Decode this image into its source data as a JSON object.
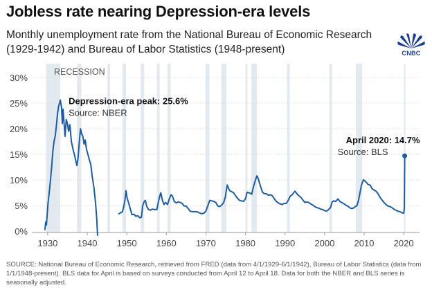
{
  "header": {
    "title": "Jobless rate nearing Depression-era levels",
    "subtitle": "Monthly unemployment rate from the National Bureau of Economic Research (1929-1942) and Bureau of Labor Statistics (1948-present)",
    "logo_text": "CNBC"
  },
  "colors": {
    "line": "#1d5c9e",
    "recession": "#e3eaef",
    "grid": "#d8d8d8",
    "text": "#222222",
    "logo": "#1b3d8f"
  },
  "chart_data": {
    "type": "line",
    "recession_label": "RECESSION",
    "ylim": [
      0,
      30
    ],
    "xlim": [
      1926,
      2024
    ],
    "y_ticks": [
      0,
      5,
      10,
      15,
      20,
      25,
      30
    ],
    "y_tick_labels": [
      "0%",
      "5%",
      "10%",
      "15%",
      "20%",
      "25%",
      "30%"
    ],
    "x_ticks": [
      1930,
      1940,
      1950,
      1960,
      1970,
      1980,
      1990,
      2000,
      2010,
      2020
    ],
    "x_tick_labels": [
      "1930",
      "1940",
      "1950",
      "1960",
      "1970",
      "1980",
      "1990",
      "2000",
      "2010",
      "2020"
    ],
    "grid": "horizontal",
    "recessions": [
      [
        1929.6,
        1933.2
      ],
      [
        1937.4,
        1938.5
      ],
      [
        1945.1,
        1945.8
      ],
      [
        1948.9,
        1949.8
      ],
      [
        1953.5,
        1954.4
      ],
      [
        1957.6,
        1958.3
      ],
      [
        1960.3,
        1961.1
      ],
      [
        1969.9,
        1970.9
      ],
      [
        1973.9,
        1975.2
      ],
      [
        1980.0,
        1980.5
      ],
      [
        1981.5,
        1982.9
      ],
      [
        1990.5,
        1991.2
      ],
      [
        2001.2,
        2001.9
      ],
      [
        2007.9,
        2009.5
      ],
      [
        2020.1,
        2020.4
      ]
    ],
    "series": [
      {
        "name": "NBER",
        "points": [
          [
            1929.3,
            0.3
          ],
          [
            1929.5,
            1.8
          ],
          [
            1929.7,
            1.2
          ],
          [
            1929.9,
            3.5
          ],
          [
            1930.1,
            5.5
          ],
          [
            1930.4,
            7.5
          ],
          [
            1930.7,
            10.0
          ],
          [
            1931.0,
            12.5
          ],
          [
            1931.3,
            15.5
          ],
          [
            1931.6,
            17.5
          ],
          [
            1931.9,
            18.5
          ],
          [
            1932.2,
            20.5
          ],
          [
            1932.5,
            23.0
          ],
          [
            1932.8,
            24.5
          ],
          [
            1933.0,
            25.0
          ],
          [
            1933.2,
            25.6
          ],
          [
            1933.5,
            24.2
          ],
          [
            1933.7,
            21.0
          ],
          [
            1933.9,
            23.8
          ],
          [
            1934.1,
            21.5
          ],
          [
            1934.4,
            18.5
          ],
          [
            1934.7,
            21.8
          ],
          [
            1935.0,
            21.0
          ],
          [
            1935.3,
            19.5
          ],
          [
            1935.6,
            20.8
          ],
          [
            1936.0,
            17.5
          ],
          [
            1936.4,
            16.0
          ],
          [
            1936.8,
            14.8
          ],
          [
            1937.1,
            13.8
          ],
          [
            1937.4,
            12.8
          ],
          [
            1937.7,
            14.5
          ],
          [
            1938.0,
            17.5
          ],
          [
            1938.3,
            20.0
          ],
          [
            1938.6,
            19.0
          ],
          [
            1938.9,
            18.5
          ],
          [
            1939.2,
            17.0
          ],
          [
            1939.5,
            17.8
          ],
          [
            1939.8,
            16.0
          ],
          [
            1940.1,
            15.2
          ],
          [
            1940.5,
            14.0
          ],
          [
            1940.9,
            13.0
          ],
          [
            1941.3,
            10.5
          ],
          [
            1941.7,
            8.5
          ],
          [
            1942.1,
            5.5
          ],
          [
            1942.4,
            2.5
          ],
          [
            1942.6,
            -0.8
          ]
        ]
      },
      {
        "name": "BLS",
        "points": [
          [
            1948.0,
            3.4
          ],
          [
            1948.5,
            3.6
          ],
          [
            1948.9,
            3.8
          ],
          [
            1949.3,
            5.0
          ],
          [
            1949.6,
            6.5
          ],
          [
            1949.8,
            7.9
          ],
          [
            1950.1,
            6.4
          ],
          [
            1950.5,
            5.4
          ],
          [
            1950.9,
            4.3
          ],
          [
            1951.3,
            3.2
          ],
          [
            1951.8,
            3.3
          ],
          [
            1952.3,
            2.9
          ],
          [
            1952.8,
            3.0
          ],
          [
            1953.3,
            2.6
          ],
          [
            1953.7,
            2.7
          ],
          [
            1954.0,
            4.9
          ],
          [
            1954.4,
            5.8
          ],
          [
            1954.7,
            6.0
          ],
          [
            1955.0,
            4.9
          ],
          [
            1955.5,
            4.2
          ],
          [
            1956.0,
            4.1
          ],
          [
            1956.5,
            4.3
          ],
          [
            1957.0,
            4.2
          ],
          [
            1957.6,
            4.2
          ],
          [
            1958.0,
            5.8
          ],
          [
            1958.4,
            7.0
          ],
          [
            1958.6,
            7.5
          ],
          [
            1959.0,
            6.0
          ],
          [
            1959.4,
            5.2
          ],
          [
            1959.8,
            5.6
          ],
          [
            1960.3,
            5.2
          ],
          [
            1960.7,
            6.2
          ],
          [
            1961.2,
            7.1
          ],
          [
            1961.5,
            6.9
          ],
          [
            1962.0,
            5.8
          ],
          [
            1962.5,
            5.5
          ],
          [
            1963.0,
            5.7
          ],
          [
            1963.5,
            5.6
          ],
          [
            1964.0,
            5.4
          ],
          [
            1964.5,
            4.9
          ],
          [
            1965.0,
            4.9
          ],
          [
            1965.5,
            4.4
          ],
          [
            1966.0,
            3.9
          ],
          [
            1966.5,
            3.8
          ],
          [
            1967.0,
            3.8
          ],
          [
            1967.5,
            3.8
          ],
          [
            1968.0,
            3.7
          ],
          [
            1968.5,
            3.5
          ],
          [
            1969.0,
            3.4
          ],
          [
            1969.5,
            3.5
          ],
          [
            1970.0,
            3.9
          ],
          [
            1970.5,
            5.0
          ],
          [
            1971.0,
            6.0
          ],
          [
            1971.5,
            5.9
          ],
          [
            1972.0,
            5.8
          ],
          [
            1972.5,
            5.6
          ],
          [
            1973.0,
            4.9
          ],
          [
            1973.5,
            4.8
          ],
          [
            1974.0,
            5.1
          ],
          [
            1974.5,
            5.6
          ],
          [
            1974.9,
            6.6
          ],
          [
            1975.2,
            8.1
          ],
          [
            1975.4,
            9.0
          ],
          [
            1975.7,
            8.4
          ],
          [
            1976.0,
            7.9
          ],
          [
            1976.5,
            7.7
          ],
          [
            1977.0,
            7.5
          ],
          [
            1977.5,
            6.9
          ],
          [
            1978.0,
            6.4
          ],
          [
            1978.5,
            6.0
          ],
          [
            1979.0,
            5.9
          ],
          [
            1979.5,
            5.8
          ],
          [
            1980.0,
            6.3
          ],
          [
            1980.4,
            7.6
          ],
          [
            1980.8,
            7.5
          ],
          [
            1981.2,
            7.4
          ],
          [
            1981.6,
            7.2
          ],
          [
            1981.9,
            8.3
          ],
          [
            1982.3,
            9.4
          ],
          [
            1982.7,
            10.4
          ],
          [
            1982.9,
            10.8
          ],
          [
            1983.2,
            10.3
          ],
          [
            1983.5,
            9.5
          ],
          [
            1983.9,
            8.5
          ],
          [
            1984.3,
            7.6
          ],
          [
            1984.8,
            7.3
          ],
          [
            1985.3,
            7.3
          ],
          [
            1985.8,
            7.0
          ],
          [
            1986.3,
            7.1
          ],
          [
            1986.8,
            6.9
          ],
          [
            1987.3,
            6.3
          ],
          [
            1987.8,
            5.8
          ],
          [
            1988.3,
            5.5
          ],
          [
            1988.8,
            5.3
          ],
          [
            1989.3,
            5.2
          ],
          [
            1989.8,
            5.4
          ],
          [
            1990.3,
            5.4
          ],
          [
            1990.8,
            6.0
          ],
          [
            1991.3,
            6.8
          ],
          [
            1991.8,
            7.1
          ],
          [
            1992.5,
            7.8
          ],
          [
            1993.0,
            7.3
          ],
          [
            1993.5,
            6.9
          ],
          [
            1994.0,
            6.6
          ],
          [
            1994.5,
            6.1
          ],
          [
            1995.0,
            5.6
          ],
          [
            1995.5,
            5.7
          ],
          [
            1996.0,
            5.6
          ],
          [
            1996.5,
            5.3
          ],
          [
            1997.0,
            5.1
          ],
          [
            1997.5,
            4.8
          ],
          [
            1998.0,
            4.6
          ],
          [
            1998.5,
            4.5
          ],
          [
            1999.0,
            4.3
          ],
          [
            1999.5,
            4.2
          ],
          [
            2000.0,
            4.0
          ],
          [
            2000.5,
            3.9
          ],
          [
            2001.0,
            4.2
          ],
          [
            2001.5,
            4.6
          ],
          [
            2001.9,
            5.7
          ],
          [
            2002.3,
            5.9
          ],
          [
            2002.8,
            5.8
          ],
          [
            2003.4,
            6.3
          ],
          [
            2003.8,
            5.8
          ],
          [
            2004.3,
            5.6
          ],
          [
            2004.8,
            5.4
          ],
          [
            2005.3,
            5.1
          ],
          [
            2005.8,
            4.9
          ],
          [
            2006.3,
            4.6
          ],
          [
            2006.8,
            4.4
          ],
          [
            2007.3,
            4.5
          ],
          [
            2007.8,
            4.8
          ],
          [
            2008.2,
            5.0
          ],
          [
            2008.6,
            6.1
          ],
          [
            2008.9,
            7.3
          ],
          [
            2009.3,
            8.9
          ],
          [
            2009.6,
            9.6
          ],
          [
            2009.8,
            10.0
          ],
          [
            2010.2,
            9.8
          ],
          [
            2010.6,
            9.5
          ],
          [
            2011.0,
            9.1
          ],
          [
            2011.5,
            9.0
          ],
          [
            2012.0,
            8.3
          ],
          [
            2012.5,
            8.0
          ],
          [
            2013.0,
            7.8
          ],
          [
            2013.5,
            7.3
          ],
          [
            2014.0,
            6.6
          ],
          [
            2014.5,
            6.1
          ],
          [
            2015.0,
            5.6
          ],
          [
            2015.5,
            5.2
          ],
          [
            2016.0,
            4.9
          ],
          [
            2016.5,
            4.8
          ],
          [
            2017.0,
            4.6
          ],
          [
            2017.5,
            4.3
          ],
          [
            2018.0,
            4.1
          ],
          [
            2018.5,
            3.9
          ],
          [
            2019.0,
            3.8
          ],
          [
            2019.5,
            3.6
          ],
          [
            2020.0,
            3.5
          ],
          [
            2020.15,
            4.4
          ],
          [
            2020.25,
            14.7
          ]
        ]
      }
    ],
    "annotations": [
      {
        "title": "Depression-era peak: 25.6%",
        "source": "Source: NBER",
        "x": 1933.2,
        "y": 25.6,
        "marker": false
      },
      {
        "title": "April 2020: 14.7%",
        "source": "Source: BLS",
        "x": 2020.25,
        "y": 14.7,
        "marker": true
      }
    ]
  },
  "footer": {
    "source": "SOURCE: National Bureau of Economic Research, retrieved from FRED (data from 4/1/1929-6/1/1942), Bureau of Labor Statistics (data from 1/1/1948-present). BLS data for April is based on surveys conducted from April 12 to April 18. Data for both the NBER and BLS series is seasonally adjusted."
  }
}
